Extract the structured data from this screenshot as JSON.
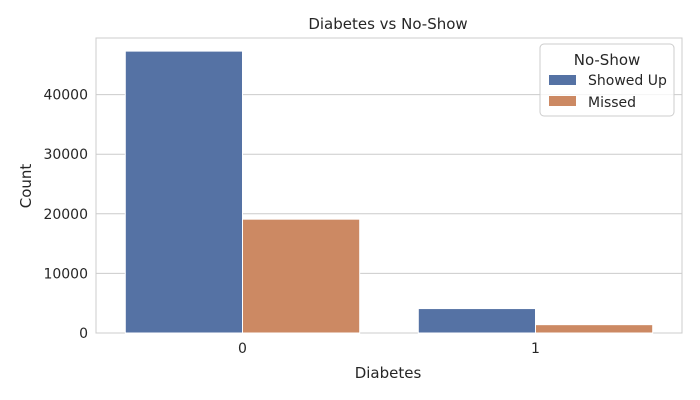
{
  "chart_data": {
    "type": "bar",
    "title": "Diabetes vs No-Show",
    "xlabel": "Diabetes",
    "ylabel": "Count",
    "categories": [
      "0",
      "1"
    ],
    "series": [
      {
        "name": "Showed Up",
        "color": "#5572a4",
        "values": [
          47300,
          4100
        ]
      },
      {
        "name": "Missed",
        "color": "#cc8963",
        "values": [
          19100,
          1400
        ]
      }
    ],
    "ylim": [
      0,
      49500
    ],
    "yticks": [
      0,
      10000,
      20000,
      30000,
      40000
    ],
    "grid": "horizontal",
    "legend": {
      "title": "No-Show",
      "placement": "top-right"
    }
  }
}
